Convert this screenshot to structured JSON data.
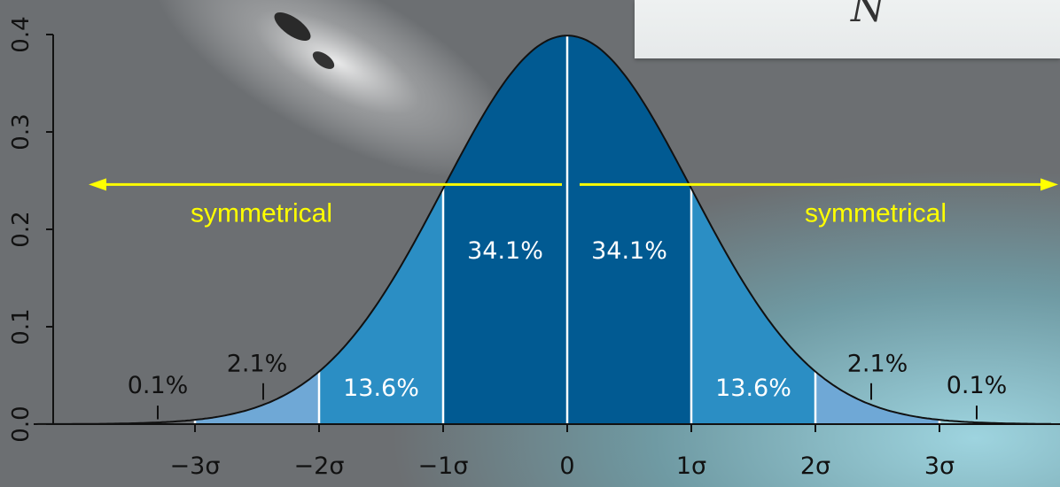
{
  "chart_data": {
    "type": "area",
    "title": "",
    "xlabel": "",
    "ylabel": "",
    "xlim": [
      -4.3,
      3.9
    ],
    "ylim": [
      0,
      0.4
    ],
    "y_ticks": [
      "0.0",
      "0.1",
      "0.2",
      "0.3",
      "0.4"
    ],
    "x_ticks": [
      {
        "value": -3,
        "label": "−3σ"
      },
      {
        "value": -2,
        "label": "−2σ"
      },
      {
        "value": -1,
        "label": "−1σ"
      },
      {
        "value": 0,
        "label": "0"
      },
      {
        "value": 1,
        "label": "1σ"
      },
      {
        "value": 2,
        "label": "2σ"
      },
      {
        "value": 3,
        "label": "3σ"
      }
    ],
    "distribution": "standard normal",
    "regions": [
      {
        "from": -3,
        "to": -2,
        "percent": 2.1,
        "label": "2.1%",
        "color": "#6fa8d6"
      },
      {
        "from": -2,
        "to": -1,
        "percent": 13.6,
        "label": "13.6%",
        "color": "#2b8ec4"
      },
      {
        "from": -1,
        "to": 0,
        "percent": 34.1,
        "label": "34.1%",
        "color": "#015a92"
      },
      {
        "from": 0,
        "to": 1,
        "percent": 34.1,
        "label": "34.1%",
        "color": "#015a92"
      },
      {
        "from": 1,
        "to": 2,
        "percent": 13.6,
        "label": "13.6%",
        "color": "#2b8ec4"
      },
      {
        "from": 2,
        "to": 3,
        "percent": 2.1,
        "label": "2.1%",
        "color": "#6fa8d6"
      }
    ],
    "tails": [
      {
        "side": "left",
        "percent": 0.1,
        "label": "0.1%"
      },
      {
        "side": "right",
        "percent": 0.1,
        "label": "0.1%"
      }
    ],
    "annotations": [
      {
        "text": "symmetrical",
        "arrow": "left",
        "color": "#ffff00"
      },
      {
        "text": "symmetrical",
        "arrow": "right",
        "color": "#ffff00"
      }
    ],
    "curve_color": "#111111"
  },
  "inset": {
    "symbol": "N"
  }
}
